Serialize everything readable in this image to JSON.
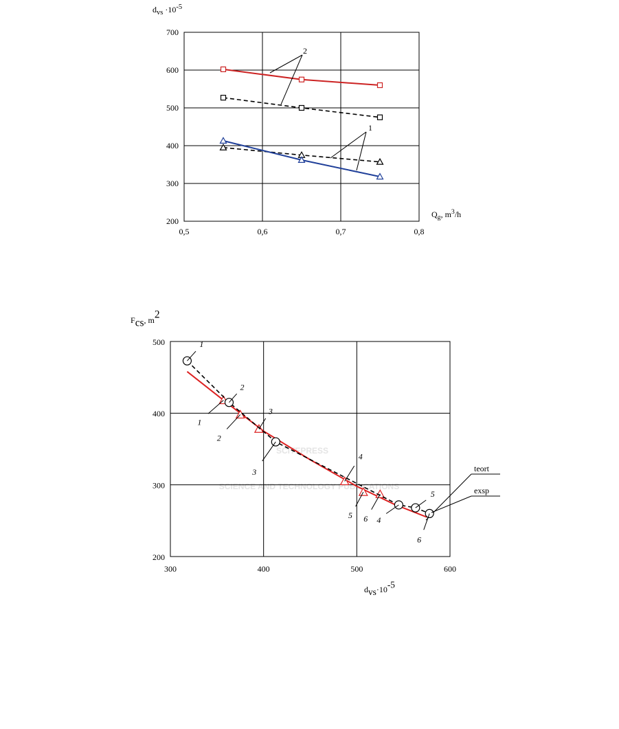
{
  "watermark": {
    "title": "SCITEPRESS",
    "subtitle": "SCIENCE AND TECHNOLOGY PUBLICATIONS"
  },
  "chart_data": [
    {
      "type": "line",
      "y_label": {
        "main": "d",
        "sub": "vs",
        "mid": " ·10",
        "sup": "-5"
      },
      "x_label": {
        "main": "Q",
        "sub": "g",
        "mid": ", m",
        "sup": "3",
        "end": "/h"
      },
      "xlim": [
        0.5,
        0.8
      ],
      "xticks": [
        {
          "value": 0.5,
          "label": "0,5"
        },
        {
          "value": 0.6,
          "label": "0,6"
        },
        {
          "value": 0.7,
          "label": "0,7"
        },
        {
          "value": 0.8,
          "label": "0,8"
        }
      ],
      "ylim": [
        200,
        700
      ],
      "yticks": [
        200,
        300,
        400,
        500,
        600,
        700
      ],
      "grid": true,
      "series": [
        {
          "color": "#cc2222",
          "marker": "square",
          "dashed": false,
          "x": [
            0.55,
            0.65,
            0.75
          ],
          "values": [
            602,
            575,
            560
          ]
        },
        {
          "color": "#000000",
          "marker": "square",
          "dashed": true,
          "x": [
            0.55,
            0.65,
            0.75
          ],
          "values": [
            527,
            500,
            475
          ]
        },
        {
          "color": "#000000",
          "marker": "triangle",
          "dashed": true,
          "x": [
            0.55,
            0.65,
            0.75
          ],
          "values": [
            395,
            375,
            357
          ]
        },
        {
          "color": "#1f3f99",
          "marker": "triangle",
          "dashed": false,
          "x": [
            0.55,
            0.65,
            0.75
          ],
          "values": [
            413,
            362,
            318
          ]
        }
      ],
      "annotations": [
        "2",
        "1"
      ]
    },
    {
      "type": "line",
      "y_label": {
        "main": "F",
        "sub": "cs",
        "mid": ", m",
        "sup": "2"
      },
      "x_label": {
        "main": "d",
        "sub": "vs",
        "mid": "·10",
        "sup": "-5"
      },
      "xlim": [
        300,
        600
      ],
      "xticks": [
        300,
        400,
        500,
        600
      ],
      "ylim": [
        200,
        500
      ],
      "yticks": [
        200,
        300,
        400,
        500
      ],
      "grid": true,
      "series": [
        {
          "name": "teort",
          "color": "#dd2222",
          "marker": "triangle",
          "dashed": false,
          "x": [
            357,
            375,
            395,
            487,
            507,
            525
          ],
          "values": [
            418,
            398,
            378,
            305,
            290,
            287
          ],
          "point_labels": [
            "1",
            "2",
            "3",
            "4",
            "5",
            "6"
          ],
          "curve_x": [
            318,
            360,
            400,
            450,
            500,
            540,
            575
          ],
          "curve_values": [
            458,
            415,
            375,
            335,
            298,
            273,
            255
          ]
        },
        {
          "name": "exsp",
          "color": "#000000",
          "marker": "circle",
          "dashed": true,
          "x": [
            318,
            363,
            413,
            545,
            563,
            578
          ],
          "values": [
            473,
            415,
            360,
            272,
            268,
            260
          ],
          "point_labels": [
            "1",
            "2",
            "3",
            "4",
            "5",
            "6"
          ]
        }
      ]
    }
  ]
}
